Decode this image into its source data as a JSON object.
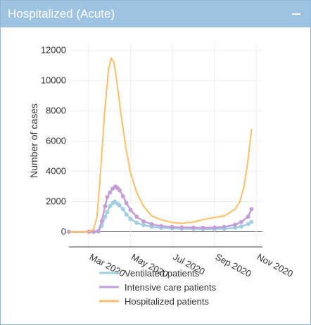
{
  "panel": {
    "title": "Hospitalized (Acute)",
    "collapse_icon": "minus-icon",
    "header_color": "#9dc3e0"
  },
  "chart_data": {
    "type": "line",
    "title": "",
    "xlabel": "",
    "ylabel": "Number of cases",
    "ylim": [
      -1000,
      12500
    ],
    "yticks": [
      0,
      2000,
      4000,
      6000,
      8000,
      10000,
      12000
    ],
    "xlim": [
      "2020-02-01",
      "2020-11-10"
    ],
    "xticks": [
      {
        "date": "2020-03-01",
        "label": "Mar 2020"
      },
      {
        "date": "2020-05-01",
        "label": "May 2020"
      },
      {
        "date": "2020-07-01",
        "label": "Jul 2020"
      },
      {
        "date": "2020-09-01",
        "label": "Sep 2020"
      },
      {
        "date": "2020-11-01",
        "label": "Nov 2020"
      }
    ],
    "grid": true,
    "legend_position": "bottom",
    "series": [
      {
        "name": "Ventilated patients",
        "color": "#9fcfe0",
        "markers": true,
        "points": [
          [
            "2020-02-01",
            0
          ],
          [
            "2020-03-01",
            0
          ],
          [
            "2020-03-08",
            0
          ],
          [
            "2020-03-15",
            20
          ],
          [
            "2020-03-20",
            400
          ],
          [
            "2020-03-25",
            1000
          ],
          [
            "2020-03-28",
            1300
          ],
          [
            "2020-04-01",
            1700
          ],
          [
            "2020-04-05",
            1900
          ],
          [
            "2020-04-08",
            2000
          ],
          [
            "2020-04-12",
            1850
          ],
          [
            "2020-04-15",
            1750
          ],
          [
            "2020-04-20",
            1500
          ],
          [
            "2020-04-25",
            1150
          ],
          [
            "2020-05-01",
            850
          ],
          [
            "2020-05-10",
            600
          ],
          [
            "2020-05-20",
            450
          ],
          [
            "2020-06-01",
            330
          ],
          [
            "2020-06-15",
            260
          ],
          [
            "2020-07-01",
            220
          ],
          [
            "2020-07-15",
            200
          ],
          [
            "2020-08-01",
            190
          ],
          [
            "2020-08-15",
            180
          ],
          [
            "2020-09-01",
            180
          ],
          [
            "2020-09-15",
            200
          ],
          [
            "2020-10-01",
            270
          ],
          [
            "2020-10-10",
            350
          ],
          [
            "2020-10-20",
            520
          ],
          [
            "2020-10-25",
            650
          ]
        ]
      },
      {
        "name": "Intensive care patients",
        "color": "#c29fd6",
        "markers": true,
        "points": [
          [
            "2020-02-01",
            0
          ],
          [
            "2020-03-01",
            0
          ],
          [
            "2020-03-08",
            0
          ],
          [
            "2020-03-15",
            50
          ],
          [
            "2020-03-20",
            700
          ],
          [
            "2020-03-25",
            1700
          ],
          [
            "2020-03-28",
            2300
          ],
          [
            "2020-04-01",
            2600
          ],
          [
            "2020-04-05",
            2850
          ],
          [
            "2020-04-09",
            3000
          ],
          [
            "2020-04-12",
            2900
          ],
          [
            "2020-04-15",
            2750
          ],
          [
            "2020-04-20",
            2350
          ],
          [
            "2020-04-25",
            1900
          ],
          [
            "2020-05-01",
            1450
          ],
          [
            "2020-05-10",
            1000
          ],
          [
            "2020-05-20",
            700
          ],
          [
            "2020-06-01",
            500
          ],
          [
            "2020-06-15",
            380
          ],
          [
            "2020-07-01",
            320
          ],
          [
            "2020-07-15",
            290
          ],
          [
            "2020-08-01",
            280
          ],
          [
            "2020-08-15",
            270
          ],
          [
            "2020-09-01",
            280
          ],
          [
            "2020-09-15",
            320
          ],
          [
            "2020-10-01",
            470
          ],
          [
            "2020-10-10",
            650
          ],
          [
            "2020-10-20",
            1000
          ],
          [
            "2020-10-25",
            1500
          ]
        ]
      },
      {
        "name": "Hospitalized patients",
        "color": "#ffbe66",
        "markers": false,
        "points": [
          [
            "2020-02-01",
            0
          ],
          [
            "2020-03-01",
            0
          ],
          [
            "2020-03-08",
            150
          ],
          [
            "2020-03-13",
            1000
          ],
          [
            "2020-03-18",
            3800
          ],
          [
            "2020-03-24",
            7800
          ],
          [
            "2020-03-30",
            10800
          ],
          [
            "2020-04-03",
            11500
          ],
          [
            "2020-04-07",
            11200
          ],
          [
            "2020-04-12",
            9600
          ],
          [
            "2020-04-17",
            7800
          ],
          [
            "2020-04-24",
            5600
          ],
          [
            "2020-05-01",
            3900
          ],
          [
            "2020-05-10",
            2600
          ],
          [
            "2020-05-20",
            1700
          ],
          [
            "2020-06-01",
            1050
          ],
          [
            "2020-06-15",
            800
          ],
          [
            "2020-07-01",
            620
          ],
          [
            "2020-07-15",
            560
          ],
          [
            "2020-08-01",
            650
          ],
          [
            "2020-08-15",
            800
          ],
          [
            "2020-09-01",
            950
          ],
          [
            "2020-09-15",
            1050
          ],
          [
            "2020-10-01",
            1500
          ],
          [
            "2020-10-08",
            2000
          ],
          [
            "2020-10-14",
            3000
          ],
          [
            "2020-10-20",
            4800
          ],
          [
            "2020-10-25",
            6800
          ]
        ]
      }
    ]
  }
}
